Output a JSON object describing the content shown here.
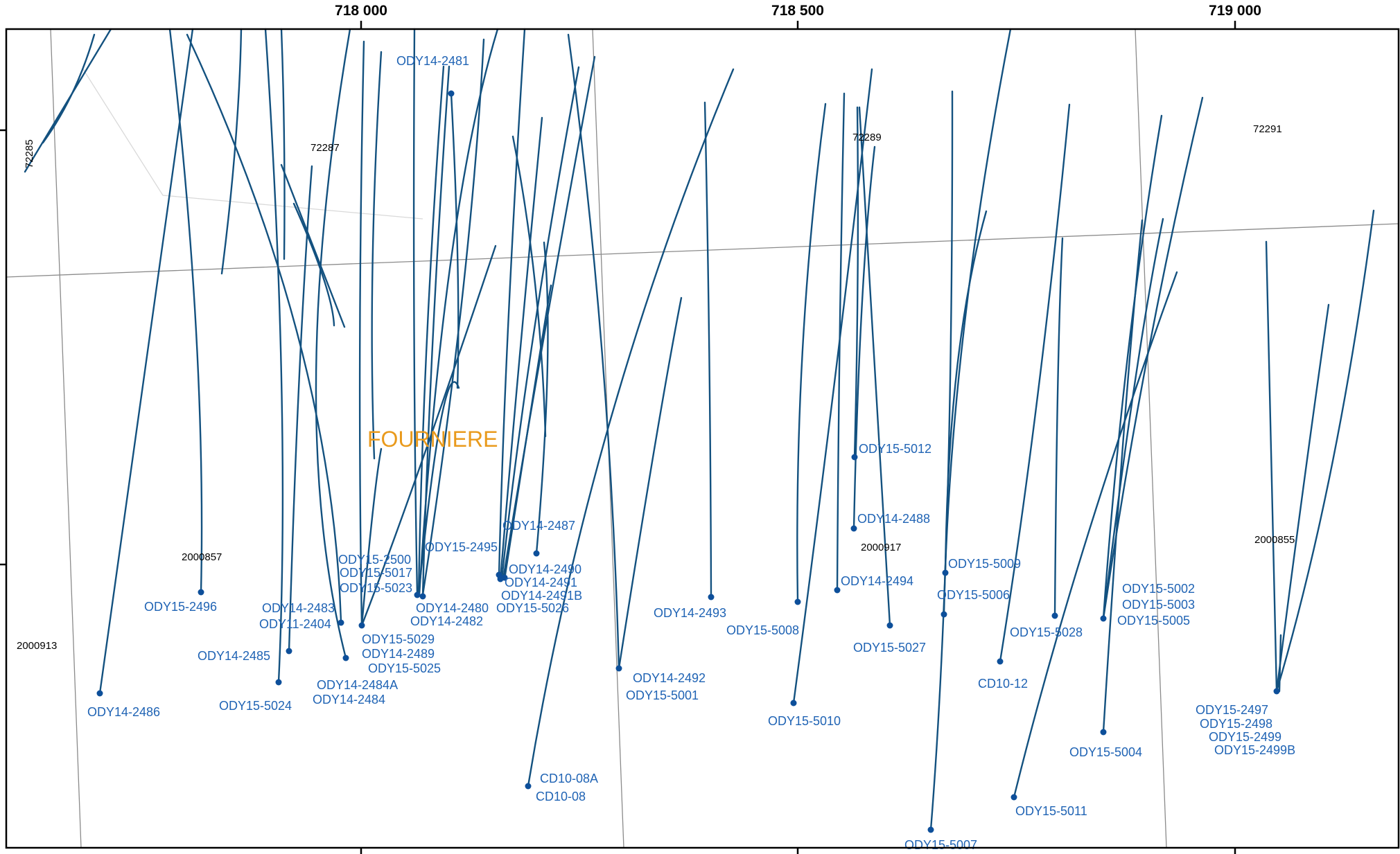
{
  "map": {
    "x_ticks": [
      "718 000",
      "718 500",
      "719 000"
    ],
    "claim_labels": [
      "72285",
      "72287",
      "72289",
      "72291",
      "2000857",
      "2000913",
      "2000917",
      "2000855"
    ],
    "area_label": "FOURNIERE",
    "hole_labels": [
      "ODY14-2481",
      "ODY14-2486",
      "ODY15-2496",
      "ODY14-2485",
      "ODY15-5024",
      "ODY14-2483",
      "ODY11-2404",
      "ODY15-2500",
      "ODY15-5017",
      "ODY15-5023",
      "ODY15-5029",
      "ODY14-2489",
      "ODY15-5025",
      "ODY14-2484A",
      "ODY14-2484",
      "ODY15-2495",
      "ODY14-2480",
      "ODY14-2482",
      "ODY14-2487",
      "ODY14-2490",
      "ODY14-2491",
      "ODY14-2491B",
      "ODY15-5026",
      "CD10-08A",
      "CD10-08",
      "ODY14-2492",
      "ODY15-5001",
      "ODY14-2493",
      "ODY15-5008",
      "ODY15-5010",
      "ODY15-5012",
      "ODY14-2488",
      "ODY14-2494",
      "ODY15-5027",
      "ODY15-5009",
      "ODY15-5006",
      "ODY15-5007",
      "CD10-12",
      "ODY15-5028",
      "ODY15-5011",
      "ODY15-5002",
      "ODY15-5003",
      "ODY15-5005",
      "ODY15-5004",
      "ODY15-2497",
      "ODY15-2498",
      "ODY15-2499",
      "ODY15-2499B"
    ],
    "colors": {
      "trace": "#13517f",
      "collar": "#0d4f9a",
      "hole_label": "#1f63b4",
      "area_label": "#e99a1c",
      "claim_line": "#8a8a8a"
    }
  }
}
